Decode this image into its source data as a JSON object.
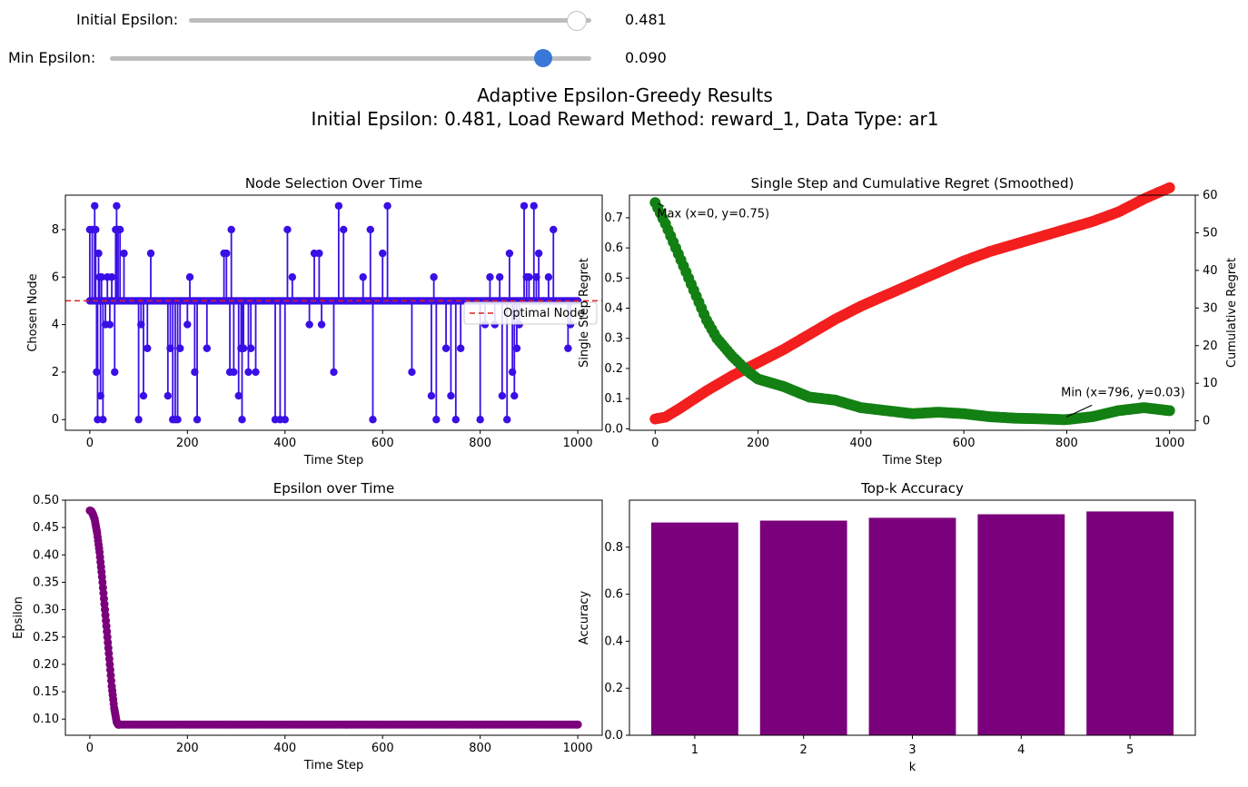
{
  "controls": {
    "initial_epsilon": {
      "label": "Initial Epsilon:",
      "value": "0.481",
      "fraction": 0.962
    },
    "min_epsilon": {
      "label": "Min Epsilon:",
      "value": "0.090",
      "fraction": 0.9
    }
  },
  "figure": {
    "suptitle_line1": "Adaptive Epsilon-Greedy Results",
    "suptitle_line2": "Initial Epsilon: 0.481, Load Reward Method: reward_1, Data Type: ar1"
  },
  "chart_data": [
    {
      "type": "line",
      "title": "Node Selection Over Time",
      "xlabel": "Time Step",
      "ylabel": "Chosen Node",
      "xlim": [
        -50,
        1050
      ],
      "ylim": [
        -0.45,
        9.45
      ],
      "xticks": [
        0,
        200,
        400,
        600,
        800,
        1000
      ],
      "yticks": [
        0,
        2,
        4,
        6,
        8
      ],
      "baseline": 5,
      "series_color": "#3a0fe6",
      "reference_line": {
        "name": "Optimal Node",
        "y": 5,
        "color": "#dd2222"
      },
      "legend": "right",
      "spikes": [
        [
          0,
          8
        ],
        [
          5,
          8
        ],
        [
          10,
          9
        ],
        [
          12,
          8
        ],
        [
          14,
          2
        ],
        [
          16,
          0
        ],
        [
          18,
          7
        ],
        [
          20,
          6
        ],
        [
          22,
          1
        ],
        [
          24,
          6
        ],
        [
          27,
          0
        ],
        [
          32,
          4
        ],
        [
          36,
          6
        ],
        [
          41,
          4
        ],
        [
          45,
          6
        ],
        [
          51,
          2
        ],
        [
          53,
          8
        ],
        [
          55,
          9
        ],
        [
          58,
          8
        ],
        [
          62,
          8
        ],
        [
          70,
          7
        ],
        [
          100,
          0
        ],
        [
          105,
          4
        ],
        [
          110,
          1
        ],
        [
          118,
          3
        ],
        [
          125,
          7
        ],
        [
          160,
          1
        ],
        [
          165,
          3
        ],
        [
          170,
          0
        ],
        [
          175,
          0
        ],
        [
          180,
          0
        ],
        [
          185,
          3
        ],
        [
          200,
          4
        ],
        [
          205,
          6
        ],
        [
          215,
          2
        ],
        [
          220,
          0
        ],
        [
          240,
          3
        ],
        [
          275,
          7
        ],
        [
          280,
          7
        ],
        [
          287,
          2
        ],
        [
          290,
          8
        ],
        [
          295,
          2
        ],
        [
          305,
          1
        ],
        [
          310,
          3
        ],
        [
          312,
          0
        ],
        [
          315,
          3
        ],
        [
          325,
          2
        ],
        [
          330,
          3
        ],
        [
          340,
          2
        ],
        [
          380,
          0
        ],
        [
          390,
          0
        ],
        [
          400,
          0
        ],
        [
          405,
          8
        ],
        [
          415,
          6
        ],
        [
          450,
          4
        ],
        [
          460,
          7
        ],
        [
          470,
          7
        ],
        [
          475,
          4
        ],
        [
          500,
          2
        ],
        [
          510,
          9
        ],
        [
          520,
          8
        ],
        [
          560,
          6
        ],
        [
          575,
          8
        ],
        [
          580,
          0
        ],
        [
          600,
          7
        ],
        [
          610,
          9
        ],
        [
          660,
          2
        ],
        [
          700,
          1
        ],
        [
          705,
          6
        ],
        [
          710,
          0
        ],
        [
          730,
          3
        ],
        [
          740,
          1
        ],
        [
          750,
          0
        ],
        [
          760,
          3
        ],
        [
          800,
          0
        ],
        [
          810,
          4
        ],
        [
          820,
          6
        ],
        [
          830,
          4
        ],
        [
          840,
          6
        ],
        [
          845,
          1
        ],
        [
          850,
          5
        ],
        [
          855,
          0
        ],
        [
          860,
          7
        ],
        [
          866,
          2
        ],
        [
          870,
          1
        ],
        [
          875,
          3
        ],
        [
          880,
          4
        ],
        [
          890,
          9
        ],
        [
          895,
          6
        ],
        [
          900,
          6
        ],
        [
          910,
          9
        ],
        [
          915,
          6
        ],
        [
          920,
          7
        ],
        [
          930,
          5
        ],
        [
          940,
          6
        ],
        [
          950,
          8
        ],
        [
          980,
          3
        ],
        [
          985,
          4
        ]
      ]
    },
    {
      "type": "line",
      "title": "Single Step and Cumulative Regret (Smoothed)",
      "xlabel": "Time Step",
      "ylabel": "Single Step Regret",
      "ylabel_right": "Cumulative Regret",
      "xlim": [
        -50,
        1050
      ],
      "ylim": [
        -0.005,
        0.775
      ],
      "ylim_right": [
        -2.5,
        60
      ],
      "xticks": [
        0,
        200,
        400,
        600,
        800,
        1000
      ],
      "yticks": [
        0.0,
        0.1,
        0.2,
        0.3,
        0.4,
        0.5,
        0.6,
        0.7
      ],
      "yticks_right": [
        0,
        10,
        20,
        30,
        40,
        50,
        60
      ],
      "series": [
        {
          "name": "Single Step Regret",
          "color": "#138013",
          "x": [
            0,
            20,
            50,
            80,
            100,
            120,
            150,
            180,
            200,
            250,
            300,
            350,
            400,
            450,
            500,
            550,
            600,
            650,
            700,
            750,
            796,
            850,
            900,
            950,
            1000
          ],
          "y": [
            0.75,
            0.68,
            0.56,
            0.44,
            0.36,
            0.3,
            0.24,
            0.19,
            0.165,
            0.14,
            0.105,
            0.095,
            0.07,
            0.06,
            0.05,
            0.055,
            0.05,
            0.04,
            0.035,
            0.033,
            0.03,
            0.04,
            0.06,
            0.07,
            0.06
          ]
        },
        {
          "name": "Cumulative Regret",
          "color": "#f31e1e",
          "x": [
            0,
            20,
            50,
            100,
            150,
            200,
            250,
            300,
            350,
            400,
            450,
            500,
            550,
            600,
            650,
            700,
            750,
            800,
            850,
            900,
            950,
            1000
          ],
          "y": [
            0.5,
            1,
            3.5,
            8,
            12,
            15.5,
            19,
            23,
            27,
            30.5,
            33.5,
            36.5,
            39.5,
            42.5,
            45,
            47,
            49,
            51,
            53,
            55.5,
            59,
            62
          ]
        }
      ],
      "annotations": [
        {
          "text": "Max (x=0, y=0.75)",
          "color": "#e02020",
          "x": 0,
          "y": 0.75
        },
        {
          "text": "Min (x=796, y=0.03)",
          "color": "#2222dd",
          "x": 796,
          "y": 0.03
        }
      ]
    },
    {
      "type": "line",
      "title": "Epsilon over Time",
      "xlabel": "Time Step",
      "ylabel": "Epsilon",
      "xlim": [
        -50,
        1050
      ],
      "ylim": [
        0.0705,
        0.5
      ],
      "xticks": [
        0,
        200,
        400,
        600,
        800,
        1000
      ],
      "yticks": [
        0.1,
        0.15,
        0.2,
        0.25,
        0.3,
        0.35,
        0.4,
        0.45,
        0.5
      ],
      "series_color": "#7b007b",
      "x": [
        0,
        3,
        6,
        10,
        15,
        20,
        25,
        30,
        35,
        40,
        45,
        50,
        55,
        58,
        1000
      ],
      "y": [
        0.481,
        0.48,
        0.475,
        0.465,
        0.44,
        0.405,
        0.36,
        0.31,
        0.26,
        0.21,
        0.16,
        0.12,
        0.095,
        0.09,
        0.09
      ]
    },
    {
      "type": "bar",
      "title": "Top-k Accuracy",
      "xlabel": "k",
      "ylabel": "Accuracy",
      "categories": [
        "1",
        "2",
        "3",
        "4",
        "5"
      ],
      "values": [
        0.905,
        0.913,
        0.925,
        0.94,
        0.952
      ],
      "ylim": [
        0,
        1.0
      ],
      "yticks": [
        0.0,
        0.2,
        0.4,
        0.6,
        0.8
      ],
      "color": "#7b007b"
    }
  ]
}
